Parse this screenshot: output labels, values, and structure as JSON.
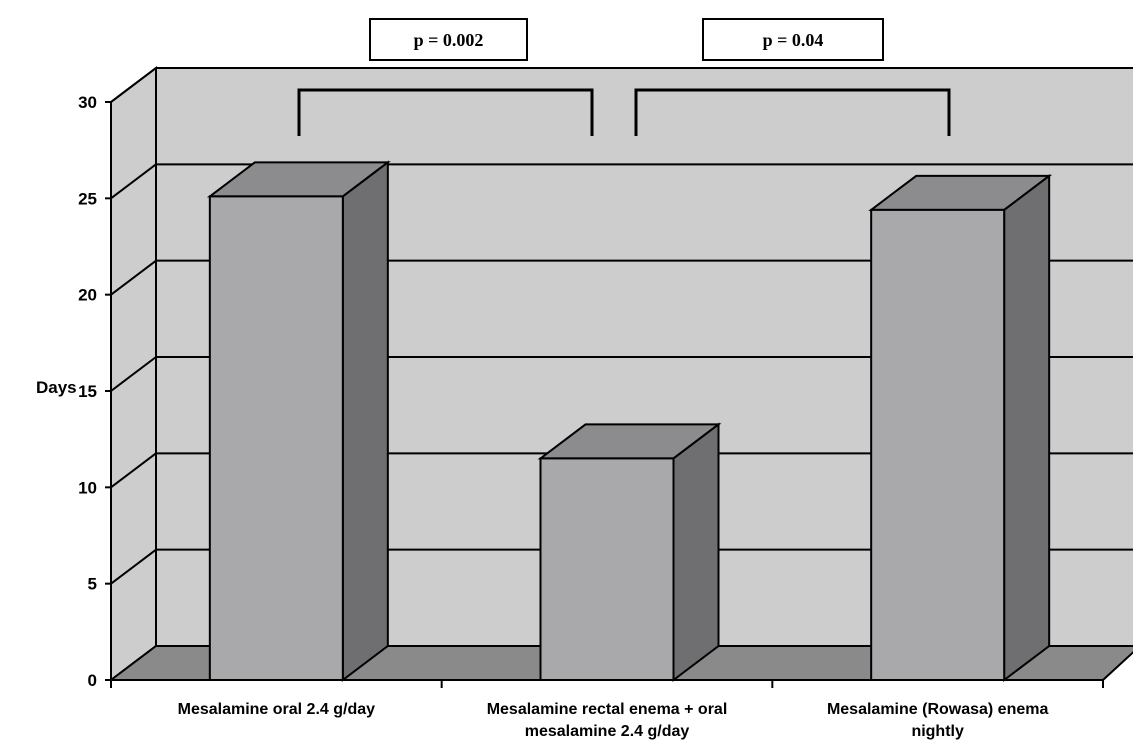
{
  "chart_data": {
    "type": "bar",
    "style": "3d-column",
    "categories": [
      [
        "Mesalamine oral 2.4 g/day"
      ],
      [
        "Mesalamine rectal enema + oral",
        "mesalamine 2.4 g/day"
      ],
      [
        "Mesalamine (Rowasa) enema",
        "nightly"
      ]
    ],
    "values": [
      25.1,
      11.5,
      24.4
    ],
    "ylabel": "Days",
    "ylim": [
      0,
      30
    ],
    "yticks": [
      0,
      5,
      10,
      15,
      20,
      25,
      30
    ],
    "grid": true,
    "annotations": [
      {
        "text": "p = 0.002",
        "from": 0,
        "to": 1
      },
      {
        "text": "p = 0.04",
        "from": 1,
        "to": 2
      }
    ]
  },
  "colors": {
    "wall": "#cdcdcd",
    "floor": "#8a8a8a",
    "bar_front": "#a9a9ab",
    "bar_side": "#6f6f72",
    "bar_top": "#8c8c8e"
  }
}
